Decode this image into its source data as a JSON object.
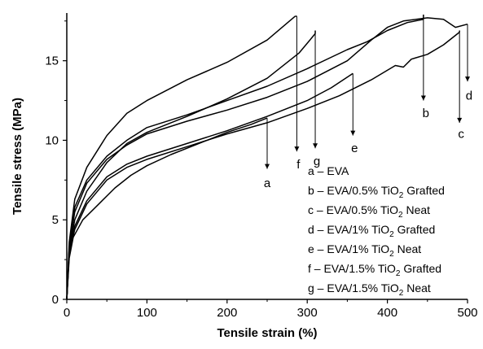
{
  "chart_data": {
    "type": "line",
    "title": "",
    "xlabel": "Tensile strain (%)",
    "ylabel": "Tensile stress (MPa)",
    "xlim": [
      0,
      500
    ],
    "ylim": [
      0,
      18
    ],
    "xticks": [
      0,
      100,
      200,
      300,
      400,
      500
    ],
    "yticks": [
      0,
      5,
      10,
      15
    ],
    "grid": false,
    "legend_placement": "bottom-right",
    "series": [
      {
        "name": "a",
        "points": [
          [
            0,
            0
          ],
          [
            3,
            2.6
          ],
          [
            8,
            3.9
          ],
          [
            20,
            5.0
          ],
          [
            40,
            6.0
          ],
          [
            60,
            7.0
          ],
          [
            80,
            7.8
          ],
          [
            100,
            8.4
          ],
          [
            130,
            9.1
          ],
          [
            160,
            9.7
          ],
          [
            200,
            10.5
          ],
          [
            230,
            11.0
          ],
          [
            250,
            11.4
          ]
        ],
        "break_at": [
          250,
          11.4
        ],
        "arrow_end": [
          250,
          8.2
        ],
        "label_pos": [
          250,
          7.3
        ]
      },
      {
        "name": "b",
        "points": [
          [
            0,
            0
          ],
          [
            3,
            3.3
          ],
          [
            10,
            5.8
          ],
          [
            25,
            7.5
          ],
          [
            50,
            9.0
          ],
          [
            75,
            10.0
          ],
          [
            100,
            10.8
          ],
          [
            150,
            11.6
          ],
          [
            200,
            12.5
          ],
          [
            250,
            13.4
          ],
          [
            300,
            14.5
          ],
          [
            350,
            15.7
          ],
          [
            375,
            16.2
          ],
          [
            400,
            16.9
          ],
          [
            425,
            17.4
          ],
          [
            445,
            17.6
          ]
        ],
        "break_at": [
          445,
          17.9
        ],
        "arrow_end": [
          445,
          12.5
        ],
        "label_pos": [
          448,
          11.7
        ]
      },
      {
        "name": "c",
        "points": [
          [
            0,
            0
          ],
          [
            3,
            2.9
          ],
          [
            10,
            4.4
          ],
          [
            25,
            6.0
          ],
          [
            50,
            7.5
          ],
          [
            75,
            8.3
          ],
          [
            100,
            8.8
          ],
          [
            150,
            9.6
          ],
          [
            200,
            10.4
          ],
          [
            250,
            11.1
          ],
          [
            300,
            12.0
          ],
          [
            340,
            12.8
          ],
          [
            380,
            13.8
          ],
          [
            410,
            14.7
          ],
          [
            420,
            14.6
          ],
          [
            430,
            15.1
          ],
          [
            450,
            15.4
          ],
          [
            470,
            16.0
          ],
          [
            490,
            16.8
          ]
        ],
        "break_at": [
          490,
          16.9
        ],
        "arrow_end": [
          490,
          11.1
        ],
        "label_pos": [
          492,
          10.4
        ]
      },
      {
        "name": "d",
        "points": [
          [
            0,
            0
          ],
          [
            3,
            3.3
          ],
          [
            10,
            5.5
          ],
          [
            25,
            7.3
          ],
          [
            50,
            8.8
          ],
          [
            75,
            9.7
          ],
          [
            100,
            10.4
          ],
          [
            150,
            11.2
          ],
          [
            200,
            11.9
          ],
          [
            250,
            12.7
          ],
          [
            300,
            13.7
          ],
          [
            350,
            15.0
          ],
          [
            380,
            16.3
          ],
          [
            400,
            17.1
          ],
          [
            420,
            17.5
          ],
          [
            450,
            17.7
          ],
          [
            470,
            17.6
          ],
          [
            485,
            17.1
          ],
          [
            500,
            17.3
          ]
        ],
        "break_at": [
          500,
          17.3
        ],
        "arrow_end": [
          500,
          13.7
        ],
        "label_pos": [
          502,
          12.8
        ]
      },
      {
        "name": "e",
        "points": [
          [
            0,
            0
          ],
          [
            3,
            3.0
          ],
          [
            10,
            4.6
          ],
          [
            25,
            6.2
          ],
          [
            50,
            7.7
          ],
          [
            75,
            8.5
          ],
          [
            100,
            9.0
          ],
          [
            150,
            9.8
          ],
          [
            200,
            10.6
          ],
          [
            250,
            11.5
          ],
          [
            300,
            12.5
          ],
          [
            330,
            13.3
          ],
          [
            357,
            14.2
          ]
        ],
        "break_at": [
          357,
          14.2
        ],
        "arrow_end": [
          357,
          10.3
        ],
        "label_pos": [
          359,
          9.5
        ]
      },
      {
        "name": "f",
        "points": [
          [
            0,
            0
          ],
          [
            3,
            3.6
          ],
          [
            10,
            6.3
          ],
          [
            25,
            8.3
          ],
          [
            50,
            10.3
          ],
          [
            75,
            11.7
          ],
          [
            100,
            12.5
          ],
          [
            150,
            13.8
          ],
          [
            200,
            14.9
          ],
          [
            250,
            16.3
          ],
          [
            285,
            17.8
          ]
        ],
        "break_at": [
          287,
          17.8
        ],
        "arrow_end": [
          287,
          9.3
        ],
        "label_pos": [
          289,
          8.5
        ]
      },
      {
        "name": "g",
        "points": [
          [
            0,
            0
          ],
          [
            3,
            3.1
          ],
          [
            10,
            5.0
          ],
          [
            25,
            6.8
          ],
          [
            50,
            8.6
          ],
          [
            75,
            9.8
          ],
          [
            100,
            10.5
          ],
          [
            150,
            11.5
          ],
          [
            200,
            12.6
          ],
          [
            250,
            13.9
          ],
          [
            290,
            15.5
          ],
          [
            310,
            16.7
          ]
        ],
        "break_at": [
          310,
          16.9
        ],
        "arrow_end": [
          310,
          9.5
        ],
        "label_pos": [
          312,
          8.7
        ]
      }
    ],
    "legend": [
      {
        "prefix": "a – EVA",
        "sub": "",
        "suffix": ""
      },
      {
        "prefix": "b – EVA/0.5% TiO",
        "sub": "2",
        "suffix": " Grafted"
      },
      {
        "prefix": "c – EVA/0.5% TiO",
        "sub": "2",
        "suffix": " Neat"
      },
      {
        "prefix": "d – EVA/1% TiO",
        "sub": "2",
        "suffix": " Grafted"
      },
      {
        "prefix": "e – EVA/1% TiO",
        "sub": "2",
        "suffix": " Neat"
      },
      {
        "prefix": "f – EVA/1.5% TiO",
        "sub": "2",
        "suffix": " Grafted"
      },
      {
        "prefix": "g – EVA/1.5% TiO",
        "sub": "2",
        "suffix": " Neat"
      }
    ]
  }
}
